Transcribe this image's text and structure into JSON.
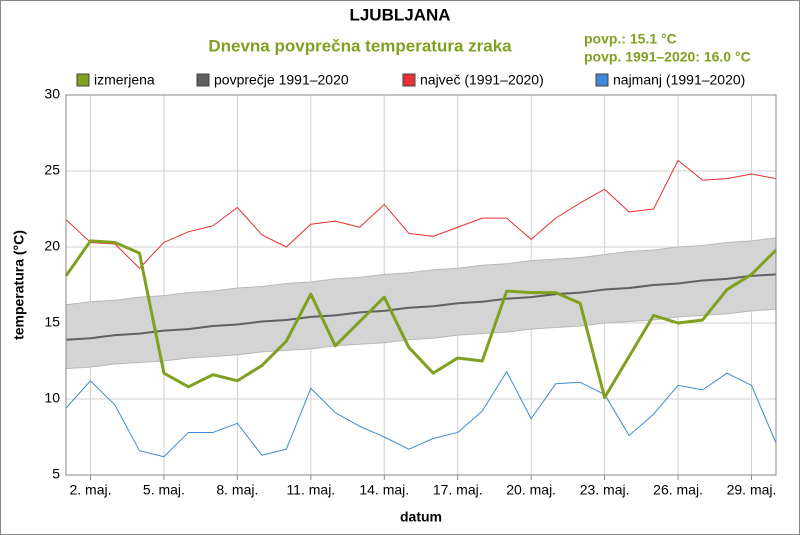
{
  "chart_data": {
    "type": "line",
    "title": "LJUBLJANA",
    "subtitle": "Dnevna povprečna temperatura zraka",
    "annotations": [
      "povp.: 15.1 °C",
      "povp. 1991–2020: 16.0 °C"
    ],
    "xlabel": "datum",
    "ylabel": "temperatura (°C)",
    "x": [
      1,
      2,
      3,
      4,
      5,
      6,
      7,
      8,
      9,
      10,
      11,
      12,
      13,
      14,
      15,
      16,
      17,
      18,
      19,
      20,
      21,
      22,
      23,
      24,
      25,
      26,
      27,
      28,
      29,
      30
    ],
    "xlim": [
      1,
      30
    ],
    "xticks": [
      {
        "value": 2,
        "label": "2. maj."
      },
      {
        "value": 5,
        "label": "5. maj."
      },
      {
        "value": 8,
        "label": "8. maj."
      },
      {
        "value": 11,
        "label": "11. maj."
      },
      {
        "value": 14,
        "label": "14. maj."
      },
      {
        "value": 17,
        "label": "17. maj."
      },
      {
        "value": 20,
        "label": "20. maj."
      },
      {
        "value": 23,
        "label": "23. maj."
      },
      {
        "value": 26,
        "label": "26. maj."
      },
      {
        "value": 29,
        "label": "29. maj."
      }
    ],
    "ylim": [
      5,
      30
    ],
    "yticks": [
      5,
      10,
      15,
      20,
      25,
      30
    ],
    "grid": true,
    "band": {
      "color": "#d4d4d4",
      "lower": [
        12.0,
        12.1,
        12.3,
        12.4,
        12.5,
        12.7,
        12.8,
        12.9,
        13.1,
        13.2,
        13.3,
        13.5,
        13.6,
        13.7,
        13.9,
        14.0,
        14.2,
        14.3,
        14.4,
        14.6,
        14.7,
        14.8,
        15.0,
        15.1,
        15.2,
        15.4,
        15.5,
        15.6,
        15.8,
        15.9
      ],
      "upper": [
        16.2,
        16.4,
        16.5,
        16.7,
        16.8,
        17.0,
        17.1,
        17.3,
        17.4,
        17.6,
        17.7,
        17.9,
        18.0,
        18.2,
        18.3,
        18.5,
        18.6,
        18.8,
        18.9,
        19.1,
        19.2,
        19.3,
        19.5,
        19.7,
        19.8,
        20.0,
        20.1,
        20.3,
        20.4,
        20.6
      ]
    },
    "series": [
      {
        "name": "izmerjena",
        "color": "#80a020",
        "values": [
          18.1,
          20.4,
          20.3,
          19.6,
          11.7,
          10.8,
          11.6,
          11.2,
          12.2,
          13.8,
          16.9,
          13.5,
          15.1,
          16.7,
          13.4,
          11.7,
          12.7,
          12.5,
          17.1,
          17.0,
          17.0,
          16.3,
          10.1,
          12.8,
          15.5,
          15.0,
          15.2,
          17.2,
          18.2,
          19.8
        ]
      },
      {
        "name": "povprečje 1991–2020",
        "color": "#606060",
        "values": [
          13.9,
          14.0,
          14.2,
          14.3,
          14.5,
          14.6,
          14.8,
          14.9,
          15.1,
          15.2,
          15.4,
          15.5,
          15.7,
          15.8,
          16.0,
          16.1,
          16.3,
          16.4,
          16.6,
          16.7,
          16.9,
          17.0,
          17.2,
          17.3,
          17.5,
          17.6,
          17.8,
          17.9,
          18.1,
          18.2
        ]
      },
      {
        "name": "največ (1991–2020)",
        "color": "#e83030",
        "values": [
          21.8,
          20.3,
          20.2,
          18.6,
          20.3,
          21.0,
          21.4,
          22.6,
          20.8,
          20.0,
          21.5,
          21.7,
          21.3,
          22.8,
          20.9,
          20.7,
          21.3,
          21.9,
          21.9,
          20.5,
          21.9,
          22.9,
          23.8,
          22.3,
          22.5,
          25.7,
          24.4,
          24.5,
          24.8,
          24.5
        ]
      },
      {
        "name": "najmanj (1991–2020)",
        "color": "#3c8ad8",
        "values": [
          9.4,
          11.2,
          9.6,
          6.6,
          6.2,
          7.8,
          7.8,
          8.4,
          6.3,
          6.7,
          10.7,
          9.1,
          8.2,
          7.5,
          6.7,
          7.4,
          7.8,
          9.2,
          11.8,
          8.7,
          11.0,
          11.1,
          10.3,
          7.6,
          9.0,
          10.9,
          10.6,
          11.7,
          10.9,
          7.1
        ]
      }
    ]
  }
}
